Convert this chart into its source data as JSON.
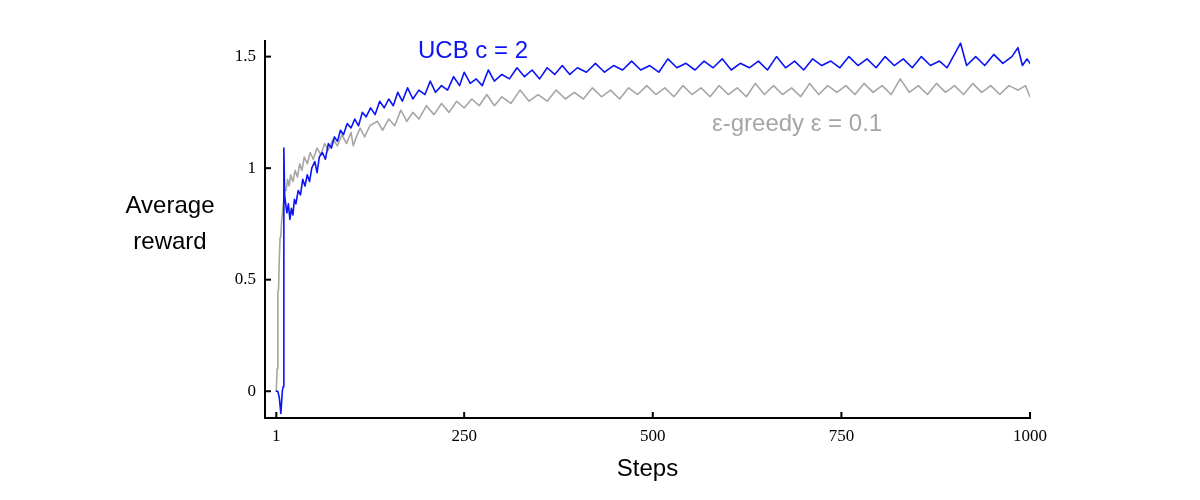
{
  "chart_data": {
    "type": "line",
    "xlabel": "Steps",
    "ylabel": "Average reward",
    "xlim": [
      -14,
      1000
    ],
    "ylim": [
      -0.12,
      1.57
    ],
    "xticks": [
      1,
      250,
      500,
      750,
      1000
    ],
    "yticks": [
      0,
      0.5,
      1,
      1.5
    ],
    "grid": false,
    "legend": false,
    "marker": "none",
    "line_style": "solid",
    "series": [
      {
        "name": "UCB c = 2",
        "color": "#0a14f5",
        "x": [
          1,
          3,
          5,
          7,
          8,
          9,
          10,
          11,
          12,
          13,
          15,
          17,
          19,
          21,
          23,
          25,
          27,
          30,
          33,
          36,
          39,
          42,
          45,
          48,
          52,
          55,
          58,
          62,
          66,
          70,
          74,
          78,
          82,
          86,
          90,
          95,
          100,
          105,
          110,
          115,
          120,
          126,
          132,
          138,
          144,
          150,
          156,
          162,
          168,
          175,
          182,
          190,
          198,
          205,
          212,
          220,
          228,
          236,
          244,
          250,
          258,
          266,
          274,
          282,
          290,
          300,
          310,
          320,
          330,
          340,
          350,
          360,
          370,
          380,
          390,
          400,
          412,
          424,
          436,
          448,
          460,
          472,
          484,
          496,
          508,
          520,
          532,
          544,
          556,
          568,
          580,
          592,
          604,
          616,
          628,
          640,
          652,
          664,
          676,
          688,
          700,
          712,
          724,
          736,
          748,
          760,
          772,
          784,
          796,
          808,
          820,
          832,
          844,
          856,
          868,
          880,
          890,
          908,
          916,
          928,
          940,
          952,
          964,
          976,
          984,
          990,
          996,
          1000
        ],
        "values": [
          0,
          0,
          -0.03,
          -0.1,
          -0.05,
          0,
          0.02,
          1.09,
          0.88,
          0.85,
          0.8,
          0.84,
          0.77,
          0.82,
          0.79,
          0.86,
          0.84,
          0.9,
          0.88,
          0.95,
          0.92,
          0.97,
          0.94,
          1,
          1.03,
          0.98,
          1.05,
          1.07,
          1.04,
          1.11,
          1.09,
          1.14,
          1.12,
          1.17,
          1.15,
          1.2,
          1.18,
          1.22,
          1.19,
          1.25,
          1.23,
          1.27,
          1.24,
          1.3,
          1.27,
          1.31,
          1.28,
          1.34,
          1.3,
          1.36,
          1.31,
          1.35,
          1.33,
          1.39,
          1.34,
          1.37,
          1.35,
          1.41,
          1.37,
          1.43,
          1.38,
          1.4,
          1.37,
          1.44,
          1.39,
          1.42,
          1.4,
          1.45,
          1.41,
          1.44,
          1.4,
          1.45,
          1.42,
          1.46,
          1.42,
          1.45,
          1.43,
          1.47,
          1.43,
          1.46,
          1.44,
          1.48,
          1.44,
          1.46,
          1.43,
          1.49,
          1.45,
          1.47,
          1.44,
          1.48,
          1.45,
          1.49,
          1.44,
          1.47,
          1.45,
          1.48,
          1.44,
          1.5,
          1.45,
          1.48,
          1.44,
          1.49,
          1.46,
          1.48,
          1.45,
          1.5,
          1.46,
          1.49,
          1.45,
          1.5,
          1.46,
          1.49,
          1.45,
          1.5,
          1.46,
          1.48,
          1.45,
          1.56,
          1.46,
          1.5,
          1.46,
          1.51,
          1.47,
          1.5,
          1.54,
          1.46,
          1.49,
          1.47
        ]
      },
      {
        "name": "ε-greedy ε = 0.1",
        "color": "#a6a6a6",
        "x": [
          1,
          2,
          3,
          4,
          5,
          6,
          7,
          8,
          10,
          12,
          14,
          16,
          18,
          20,
          23,
          26,
          29,
          32,
          35,
          38,
          42,
          46,
          50,
          55,
          60,
          65,
          70,
          76,
          82,
          88,
          94,
          100,
          103,
          106,
          112,
          118,
          125,
          135,
          142,
          150,
          158,
          166,
          174,
          182,
          190,
          200,
          210,
          220,
          230,
          240,
          250,
          260,
          270,
          280,
          290,
          300,
          312,
          324,
          336,
          348,
          360,
          372,
          384,
          396,
          408,
          420,
          432,
          444,
          456,
          468,
          480,
          492,
          504,
          516,
          528,
          540,
          552,
          564,
          576,
          588,
          600,
          612,
          624,
          636,
          648,
          660,
          672,
          684,
          696,
          708,
          720,
          732,
          744,
          756,
          768,
          780,
          792,
          804,
          816,
          828,
          840,
          852,
          864,
          876,
          888,
          900,
          912,
          924,
          936,
          948,
          960,
          972,
          984,
          994,
          1000
        ],
        "values": [
          0,
          0.1,
          0.44,
          0.46,
          0.6,
          0.69,
          0.7,
          0.76,
          0.83,
          0.9,
          0.9,
          0.95,
          0.92,
          0.97,
          0.94,
          0.99,
          0.96,
          1.02,
          0.99,
          1.05,
          1.02,
          1.07,
          1.04,
          1.09,
          1.06,
          1.11,
          1.08,
          1.13,
          1.1,
          1.15,
          1.11,
          1.16,
          1.1,
          1.13,
          1.18,
          1.14,
          1.19,
          1.21,
          1.17,
          1.22,
          1.19,
          1.26,
          1.21,
          1.25,
          1.22,
          1.28,
          1.24,
          1.29,
          1.25,
          1.3,
          1.27,
          1.31,
          1.28,
          1.33,
          1.28,
          1.32,
          1.29,
          1.35,
          1.3,
          1.33,
          1.3,
          1.35,
          1.31,
          1.34,
          1.31,
          1.36,
          1.32,
          1.35,
          1.31,
          1.36,
          1.33,
          1.37,
          1.33,
          1.36,
          1.32,
          1.37,
          1.33,
          1.36,
          1.32,
          1.37,
          1.33,
          1.36,
          1.32,
          1.38,
          1.33,
          1.37,
          1.33,
          1.36,
          1.32,
          1.38,
          1.33,
          1.37,
          1.34,
          1.37,
          1.33,
          1.38,
          1.34,
          1.37,
          1.33,
          1.4,
          1.34,
          1.37,
          1.33,
          1.38,
          1.34,
          1.37,
          1.33,
          1.38,
          1.34,
          1.37,
          1.33,
          1.37,
          1.35,
          1.37,
          1.32
        ]
      }
    ]
  }
}
